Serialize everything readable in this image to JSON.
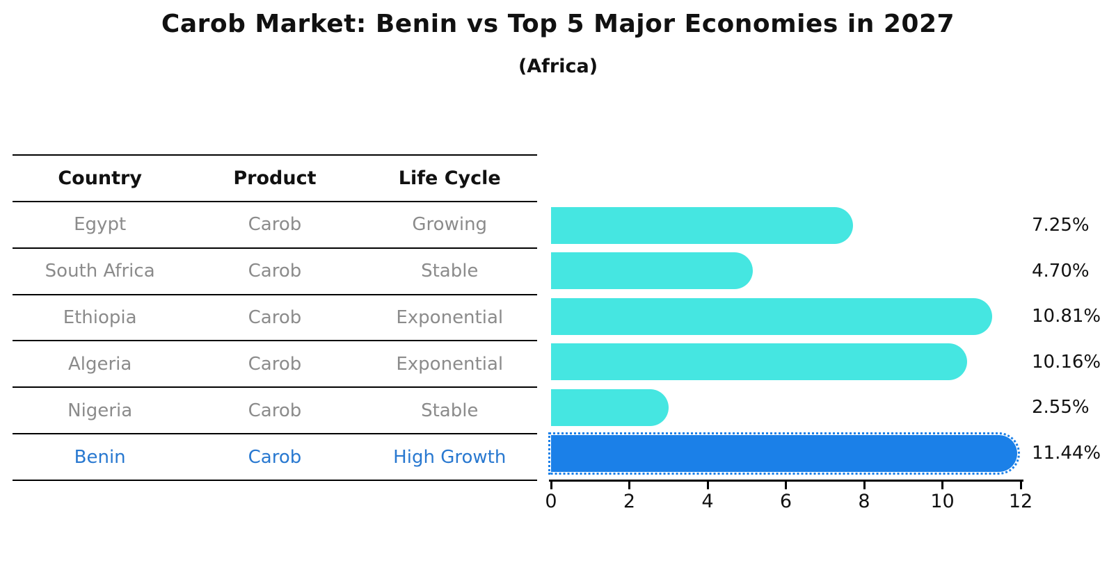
{
  "title": "Carob Market: Benin vs Top 5 Major Economies in 2027",
  "subtitle": "(Africa)",
  "table": {
    "headers": [
      "Country",
      "Product",
      "Life Cycle"
    ],
    "rows": [
      {
        "country": "Egypt",
        "product": "Carob",
        "life_cycle": "Growing",
        "highlight": false
      },
      {
        "country": "South Africa",
        "product": "Carob",
        "life_cycle": "Stable",
        "highlight": false
      },
      {
        "country": "Ethiopia",
        "product": "Carob",
        "life_cycle": "Exponential",
        "highlight": false
      },
      {
        "country": "Algeria",
        "product": "Carob",
        "life_cycle": "Exponential",
        "highlight": false
      },
      {
        "country": "Nigeria",
        "product": "Carob",
        "life_cycle": "Stable",
        "highlight": false
      },
      {
        "country": "Benin",
        "product": "Carob",
        "life_cycle": "High Growth",
        "highlight": true
      }
    ]
  },
  "chart_data": {
    "type": "bar",
    "orientation": "horizontal",
    "title": "Carob Market: Benin vs Top 5 Major Economies in 2027",
    "subtitle": "(Africa)",
    "categories": [
      "Egypt",
      "South Africa",
      "Ethiopia",
      "Algeria",
      "Nigeria",
      "Benin"
    ],
    "values": [
      7.25,
      4.7,
      10.81,
      10.16,
      2.55,
      11.44
    ],
    "value_labels": [
      "7.25%",
      "4.70%",
      "10.81%",
      "10.16%",
      "2.55%",
      "11.44%"
    ],
    "x_ticks": [
      0,
      2,
      4,
      6,
      8,
      10,
      12
    ],
    "xlim": [
      0,
      12
    ],
    "grid": false,
    "legend": "none",
    "bar_color": "#45e6e1",
    "highlight_color": "#1b80e8",
    "highlight_index": 5,
    "label_color": "#111111",
    "table_text_color": "#8b8b8b",
    "highlight_text_color": "#2878d0"
  }
}
